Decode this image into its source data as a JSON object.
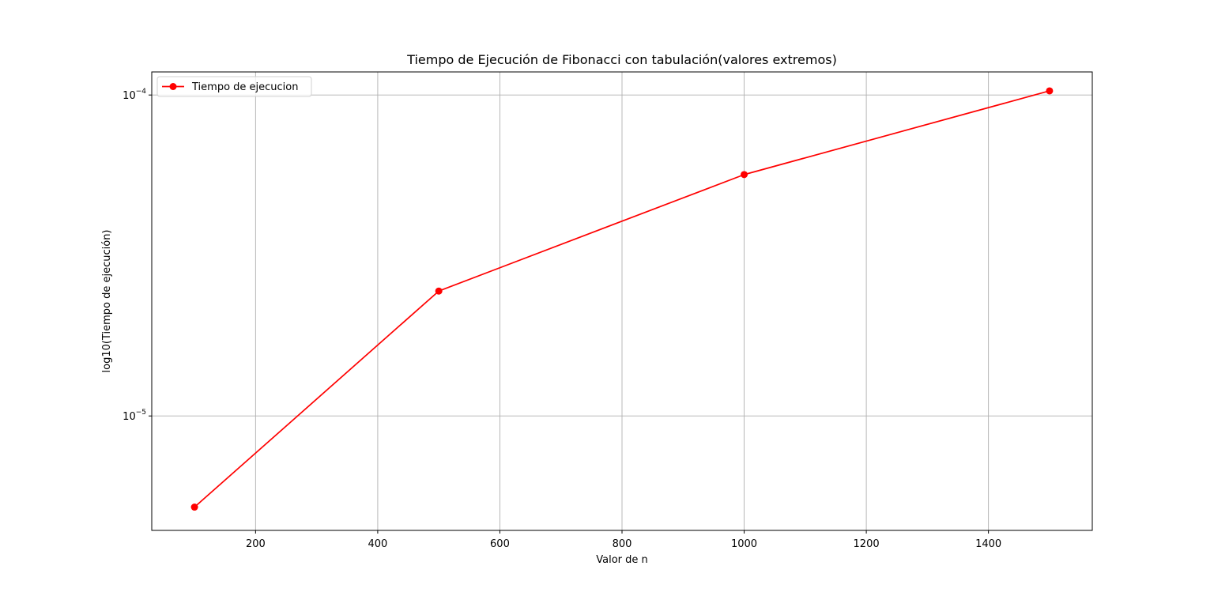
{
  "chart_data": {
    "type": "line",
    "title": "Tiempo de Ejecución de Fibonacci con tabulación(valores extremos)",
    "xlabel": "Valor de n",
    "ylabel": "log10(Tiempo de ejecución)",
    "x_scale": "linear",
    "y_scale": "log",
    "xlim": [
      30,
      1570
    ],
    "ylim": [
      4.4e-06,
      0.000118
    ],
    "x_ticks": [
      {
        "value": 200,
        "label": "200"
      },
      {
        "value": 400,
        "label": "400"
      },
      {
        "value": 600,
        "label": "600"
      },
      {
        "value": 800,
        "label": "800"
      },
      {
        "value": 1000,
        "label": "1000"
      },
      {
        "value": 1200,
        "label": "1200"
      },
      {
        "value": 1400,
        "label": "1400"
      }
    ],
    "y_ticks": [
      {
        "value": 1e-05,
        "base": "10",
        "exponent": "−5"
      },
      {
        "value": 0.0001,
        "base": "10",
        "exponent": "−4"
      }
    ],
    "grid": true,
    "legend": {
      "placement": "upper-left"
    },
    "series": [
      {
        "name": "Tiempo de ejecucion",
        "color": "#ff0000",
        "marker": "circle",
        "x": [
          100,
          500,
          1000,
          1500
        ],
        "y": [
          5.2e-06,
          2.45e-05,
          5.65e-05,
          0.000103
        ]
      }
    ]
  }
}
